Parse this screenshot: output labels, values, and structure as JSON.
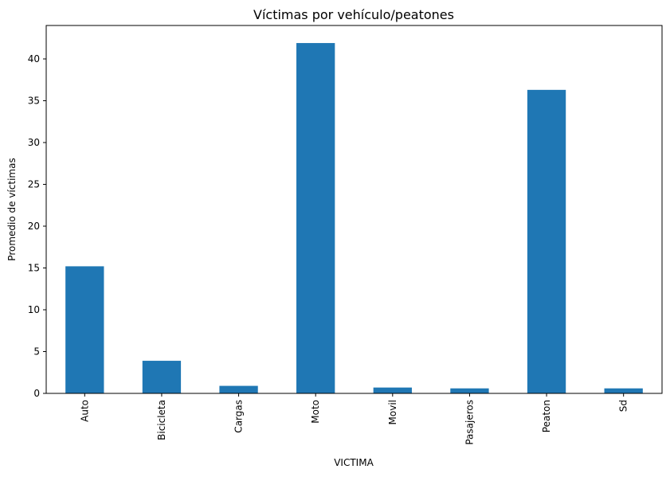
{
  "chart_data": {
    "type": "bar",
    "title": "Víctimas por vehículo/peatones",
    "xlabel": "VICTIMA",
    "ylabel": "Promedio de víctimas",
    "categories": [
      "Auto",
      "Bicicleta",
      "Cargas",
      "Moto",
      "Movil",
      "Pasajeros",
      "Peaton",
      "Sd"
    ],
    "values": [
      15.2,
      3.9,
      0.9,
      41.9,
      0.7,
      0.6,
      36.3,
      0.6
    ],
    "ylim": [
      0,
      44
    ],
    "yticks": [
      0,
      5,
      10,
      15,
      20,
      25,
      30,
      35,
      40
    ],
    "grid": false,
    "bar_color": "#1f77b4"
  }
}
